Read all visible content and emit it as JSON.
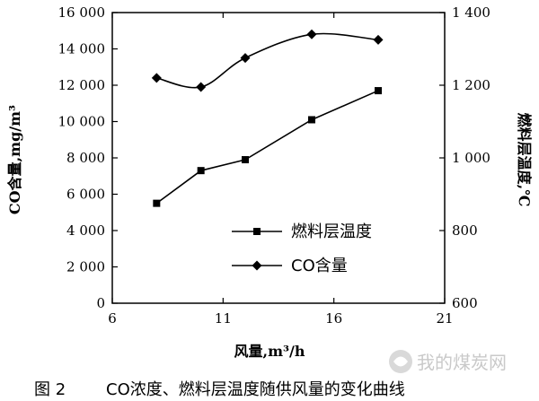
{
  "chart_data": {
    "type": "line",
    "x_axis": {
      "label": "风量,m³/h",
      "lim": [
        6,
        21
      ],
      "ticks": [
        6,
        11,
        16,
        21
      ],
      "tick_labels": [
        "6",
        "11",
        "16",
        "21"
      ]
    },
    "y_left": {
      "label": "CO含量,mg/m³",
      "lim": [
        0,
        16000
      ],
      "ticks": [
        0,
        2000,
        4000,
        6000,
        8000,
        10000,
        12000,
        14000,
        16000
      ],
      "tick_labels": [
        "0",
        "2 000",
        "4 000",
        "6 000",
        "8 000",
        "10 000",
        "12 000",
        "14 000",
        "16 000"
      ]
    },
    "y_right": {
      "label": "燃料层温度,℃",
      "lim": [
        600,
        1400
      ],
      "ticks": [
        600,
        800,
        1000,
        1200,
        1400
      ],
      "tick_labels": [
        "600",
        "800",
        "1 000",
        "1 200",
        "1 400"
      ]
    },
    "grid": false,
    "legend": "center",
    "series": [
      {
        "name": "燃料层温度",
        "marker": "square",
        "axis": "left",
        "smooth": false,
        "x": [
          8,
          10,
          12,
          15,
          18
        ],
        "y": [
          5500,
          7300,
          7900,
          10100,
          11700
        ]
      },
      {
        "name": "CO含量",
        "marker": "diamond",
        "axis": "left",
        "smooth": true,
        "x": [
          8,
          10,
          12,
          15,
          18
        ],
        "y": [
          12400,
          11900,
          13500,
          14800,
          14500
        ]
      }
    ]
  },
  "caption": {
    "label": "图 2",
    "text": "CO浓度、燃料层温度随供风量的变化曲线"
  },
  "watermark": {
    "text": "我的煤炭网",
    "color": "#c9c9c9"
  }
}
